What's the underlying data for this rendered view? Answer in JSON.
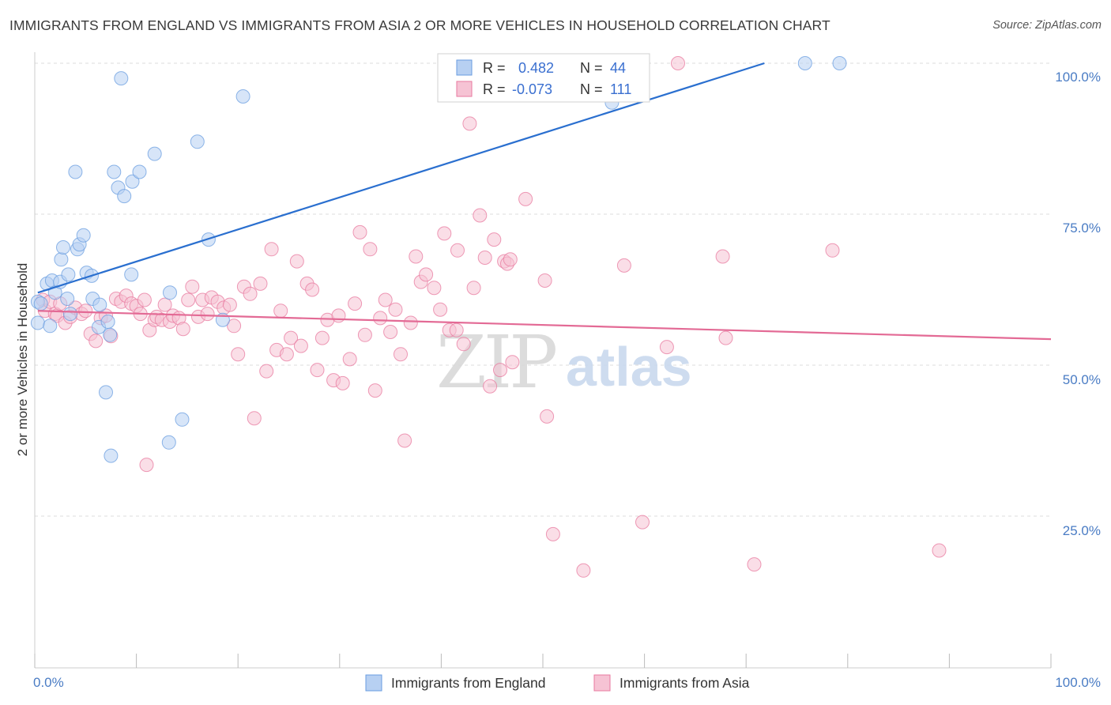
{
  "header": {
    "title": "IMMIGRANTS FROM ENGLAND VS IMMIGRANTS FROM ASIA 2 OR MORE VEHICLES IN HOUSEHOLD CORRELATION CHART",
    "source": "Source: ZipAtlas.com"
  },
  "watermark": {
    "zip": "ZIP",
    "atlas": "atlas"
  },
  "colors": {
    "england": "#6a9de0",
    "england_fill": "#b7d0f2",
    "england_line": "#2a6fcf",
    "asia": "#e8799f",
    "asia_fill": "#f6c3d4",
    "asia_line": "#e36a95",
    "axis_text": "#4a7cc4",
    "grid": "#dddddd"
  },
  "stats": {
    "england": {
      "r_label": "R =",
      "r_value": "0.482",
      "n_label": "N =",
      "n_value": "44"
    },
    "asia": {
      "r_label": "R =",
      "r_value": "-0.073",
      "n_label": "N =",
      "n_value": "111"
    }
  },
  "chart_data": {
    "type": "scatter",
    "title": "IMMIGRANTS FROM ENGLAND VS IMMIGRANTS FROM ASIA 2 OR MORE VEHICLES IN HOUSEHOLD CORRELATION CHART",
    "xlabel": "",
    "ylabel": "2 or more Vehicles in Household",
    "xlim": [
      0,
      100
    ],
    "ylim": [
      0,
      102
    ],
    "x_tick_labels": [
      "0.0%",
      "100.0%"
    ],
    "y_ticks": [
      25,
      50,
      75,
      100
    ],
    "y_tick_labels": [
      "25.0%",
      "50.0%",
      "75.0%",
      "100.0%"
    ],
    "grid": true,
    "legend_position": "bottom-center",
    "series": [
      {
        "name": "Immigrants from England",
        "trend": {
          "x": [
            0.3,
            71.8
          ],
          "y": [
            62.0,
            100.0
          ]
        },
        "points": [
          [
            0.3,
            57.0
          ],
          [
            0.3,
            60.5
          ],
          [
            0.6,
            60.2
          ],
          [
            1.2,
            63.5
          ],
          [
            1.5,
            56.5
          ],
          [
            1.7,
            64.0
          ],
          [
            2.0,
            62.0
          ],
          [
            2.5,
            63.8
          ],
          [
            2.6,
            67.5
          ],
          [
            2.8,
            69.5
          ],
          [
            3.2,
            61.0
          ],
          [
            3.3,
            65.0
          ],
          [
            3.5,
            58.5
          ],
          [
            4.0,
            82.0
          ],
          [
            4.2,
            69.2
          ],
          [
            4.4,
            70.0
          ],
          [
            4.8,
            71.5
          ],
          [
            5.1,
            65.3
          ],
          [
            5.6,
            64.8
          ],
          [
            5.7,
            61.0
          ],
          [
            6.3,
            56.3
          ],
          [
            6.4,
            60.0
          ],
          [
            7.0,
            45.5
          ],
          [
            7.2,
            57.2
          ],
          [
            7.4,
            55.0
          ],
          [
            7.5,
            35.0
          ],
          [
            7.8,
            82.0
          ],
          [
            8.2,
            79.4
          ],
          [
            8.5,
            97.5
          ],
          [
            8.8,
            78.0
          ],
          [
            9.5,
            65.0
          ],
          [
            9.6,
            80.4
          ],
          [
            10.3,
            82.0
          ],
          [
            11.8,
            85.0
          ],
          [
            13.2,
            37.2
          ],
          [
            13.3,
            62.0
          ],
          [
            14.5,
            41.0
          ],
          [
            16.0,
            87.0
          ],
          [
            17.1,
            70.8
          ],
          [
            18.5,
            57.5
          ],
          [
            20.5,
            94.5
          ],
          [
            56.8,
            93.5
          ],
          [
            75.8,
            100.0
          ],
          [
            79.2,
            100.0
          ]
        ]
      },
      {
        "name": "Immigrants from Asia",
        "trend": {
          "x": [
            0.3,
            100.0
          ],
          "y": [
            59.0,
            54.3
          ]
        },
        "points": [
          [
            0.8,
            60.8
          ],
          [
            1.0,
            59.0
          ],
          [
            1.5,
            60.5
          ],
          [
            2.0,
            58.5
          ],
          [
            2.2,
            58.2
          ],
          [
            2.5,
            60.2
          ],
          [
            3.0,
            57.0
          ],
          [
            3.5,
            58.0
          ],
          [
            4.0,
            59.5
          ],
          [
            4.6,
            58.5
          ],
          [
            5.0,
            59.0
          ],
          [
            5.5,
            55.2
          ],
          [
            6.0,
            54.0
          ],
          [
            6.5,
            57.8
          ],
          [
            7.0,
            58.2
          ],
          [
            7.5,
            54.8
          ],
          [
            8.0,
            61.0
          ],
          [
            8.5,
            60.5
          ],
          [
            9.0,
            61.5
          ],
          [
            9.5,
            60.2
          ],
          [
            10.0,
            59.8
          ],
          [
            10.4,
            58.5
          ],
          [
            10.8,
            60.8
          ],
          [
            11.0,
            33.5
          ],
          [
            11.3,
            55.8
          ],
          [
            11.8,
            57.5
          ],
          [
            12.0,
            58.0
          ],
          [
            12.5,
            57.5
          ],
          [
            12.8,
            60.0
          ],
          [
            13.3,
            57.2
          ],
          [
            13.6,
            58.2
          ],
          [
            14.2,
            57.8
          ],
          [
            14.6,
            56.0
          ],
          [
            15.1,
            60.8
          ],
          [
            15.5,
            63.0
          ],
          [
            16.1,
            58.0
          ],
          [
            16.5,
            60.8
          ],
          [
            17.0,
            58.5
          ],
          [
            17.4,
            61.2
          ],
          [
            18.0,
            60.5
          ],
          [
            18.6,
            59.5
          ],
          [
            19.2,
            60.0
          ],
          [
            19.6,
            56.5
          ],
          [
            20.0,
            51.8
          ],
          [
            20.6,
            63.0
          ],
          [
            21.2,
            61.8
          ],
          [
            21.6,
            41.2
          ],
          [
            22.2,
            63.5
          ],
          [
            22.8,
            49.0
          ],
          [
            23.3,
            69.2
          ],
          [
            23.8,
            52.5
          ],
          [
            24.2,
            59.0
          ],
          [
            24.8,
            51.8
          ],
          [
            25.2,
            54.5
          ],
          [
            25.8,
            67.2
          ],
          [
            26.2,
            53.2
          ],
          [
            26.8,
            63.5
          ],
          [
            27.3,
            62.5
          ],
          [
            27.8,
            49.2
          ],
          [
            28.3,
            54.5
          ],
          [
            28.8,
            57.5
          ],
          [
            29.4,
            47.5
          ],
          [
            29.9,
            58.2
          ],
          [
            30.3,
            47.0
          ],
          [
            31.0,
            51.0
          ],
          [
            31.5,
            60.2
          ],
          [
            32.0,
            72.0
          ],
          [
            32.5,
            55.0
          ],
          [
            33.0,
            69.2
          ],
          [
            33.5,
            45.8
          ],
          [
            34.0,
            57.8
          ],
          [
            34.5,
            60.8
          ],
          [
            35.0,
            55.5
          ],
          [
            35.5,
            59.2
          ],
          [
            36.0,
            51.8
          ],
          [
            36.4,
            37.5
          ],
          [
            37.0,
            57.0
          ],
          [
            37.5,
            68.0
          ],
          [
            38.0,
            63.8
          ],
          [
            38.5,
            65.0
          ],
          [
            39.3,
            62.8
          ],
          [
            39.9,
            59.2
          ],
          [
            40.3,
            71.8
          ],
          [
            40.8,
            55.8
          ],
          [
            41.5,
            55.8
          ],
          [
            41.6,
            69.0
          ],
          [
            42.2,
            53.5
          ],
          [
            42.8,
            90.0
          ],
          [
            43.2,
            62.8
          ],
          [
            43.8,
            74.8
          ],
          [
            44.3,
            67.8
          ],
          [
            44.8,
            46.5
          ],
          [
            45.2,
            70.8
          ],
          [
            45.8,
            49.2
          ],
          [
            46.2,
            67.2
          ],
          [
            46.5,
            66.8
          ],
          [
            46.8,
            67.5
          ],
          [
            47.0,
            50.5
          ],
          [
            48.3,
            77.5
          ],
          [
            50.2,
            64.0
          ],
          [
            50.4,
            41.5
          ],
          [
            51.0,
            22.0
          ],
          [
            53.8,
            100.0
          ],
          [
            54.0,
            16.0
          ],
          [
            58.0,
            66.5
          ],
          [
            59.8,
            24.0
          ],
          [
            62.2,
            53.0
          ],
          [
            63.3,
            100.0
          ],
          [
            67.7,
            68.0
          ],
          [
            68.0,
            54.5
          ],
          [
            70.8,
            17.0
          ],
          [
            78.5,
            69.0
          ],
          [
            89.0,
            19.3
          ]
        ]
      }
    ]
  }
}
